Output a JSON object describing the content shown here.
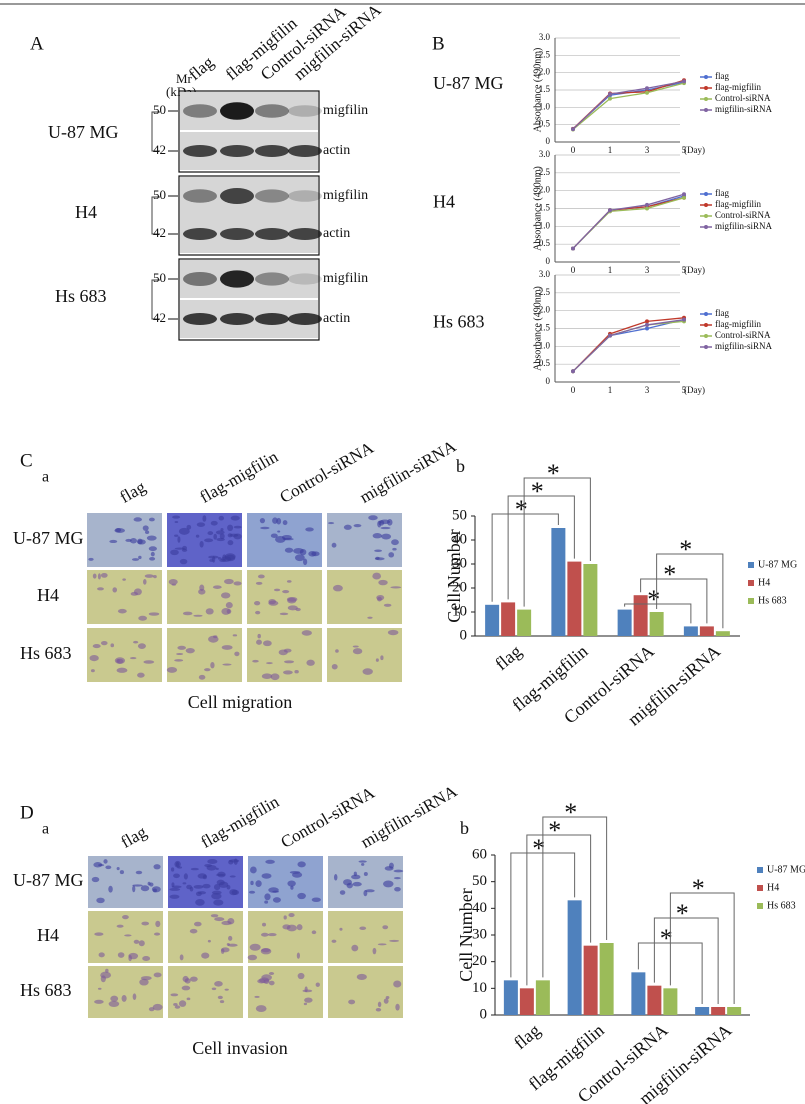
{
  "panel_labels": [
    "A",
    "B",
    "C",
    "D"
  ],
  "subpanel_labels": [
    "a",
    "b",
    "a",
    "b"
  ],
  "blot": {
    "lanes": [
      "flag",
      "flag-migfilin",
      "Control-siRNA",
      "migfilin-siRNA"
    ],
    "mr_label": [
      "Mr",
      "(kDa)"
    ],
    "cell_lines": [
      "U-87 MG",
      "H4",
      "Hs 683"
    ],
    "markers": [
      "50",
      "42"
    ],
    "proteins": [
      "migfilin",
      "actin"
    ]
  },
  "micrographs": {
    "conditions": [
      "flag",
      "flag-migfilin",
      "Control-siRNA",
      "migfilin-siRNA"
    ],
    "cell_lines": [
      "U-87 MG",
      "H4",
      "Hs 683"
    ],
    "captions": [
      "Cell migration",
      "Cell invasion"
    ]
  },
  "chart_data": [
    {
      "type": "line",
      "label": "U-87 MG",
      "y_label": "Absorbance (490nm)",
      "x_unit": "(Day)",
      "categories": [
        "0",
        "1",
        "3",
        "5"
      ],
      "ylim": [
        0,
        3
      ],
      "yticks": [
        0,
        0.5,
        {
          "value": 1,
          "label": "1.0"
        },
        1.5,
        {
          "value": 2,
          "label": "2.0"
        },
        2.5,
        {
          "value": 3,
          "label": "3.0"
        }
      ],
      "grid": true,
      "series": [
        {
          "name": "flag",
          "color": "#4f6fd0",
          "values": [
            0.38,
            1.35,
            1.5,
            1.72
          ]
        },
        {
          "name": "flag-migfilin",
          "color": "#c0392b",
          "values": [
            0.38,
            1.4,
            1.45,
            1.78
          ]
        },
        {
          "name": "Control-siRNA",
          "color": "#9bbb59",
          "values": [
            0.36,
            1.25,
            1.42,
            1.7
          ]
        },
        {
          "name": "migfilin-siRNA",
          "color": "#8064a2",
          "values": [
            0.37,
            1.38,
            1.55,
            1.75
          ]
        }
      ]
    },
    {
      "type": "line",
      "label": "H4",
      "y_label": "Absorbance (490nm)",
      "x_unit": "(Day)",
      "categories": [
        "0",
        "1",
        "3",
        "5"
      ],
      "ylim": [
        0,
        3
      ],
      "yticks": [
        0,
        0.5,
        {
          "value": 1,
          "label": "1.0"
        },
        1.5,
        {
          "value": 2,
          "label": "2.0"
        },
        2.5,
        {
          "value": 3,
          "label": "3.0"
        }
      ],
      "grid": true,
      "series": [
        {
          "name": "flag",
          "color": "#4f6fd0",
          "values": [
            0.38,
            1.45,
            1.55,
            1.85
          ]
        },
        {
          "name": "flag-migfilin",
          "color": "#c0392b",
          "values": [
            0.38,
            1.45,
            1.55,
            1.8
          ]
        },
        {
          "name": "Control-siRNA",
          "color": "#9bbb59",
          "values": [
            0.38,
            1.42,
            1.5,
            1.8
          ]
        },
        {
          "name": "migfilin-siRNA",
          "color": "#8064a2",
          "values": [
            0.38,
            1.45,
            1.6,
            1.9
          ]
        }
      ]
    },
    {
      "type": "line",
      "label": "Hs 683",
      "y_label": "Absorbance (490nm)",
      "x_unit": "(Day)",
      "categories": [
        "0",
        "1",
        "3",
        "5"
      ],
      "ylim": [
        0,
        3
      ],
      "yticks": [
        0,
        0.5,
        {
          "value": 1,
          "label": "1.0"
        },
        1.5,
        {
          "value": 2,
          "label": "2.0"
        },
        2.5,
        {
          "value": 3,
          "label": "3.0"
        }
      ],
      "grid": true,
      "series": [
        {
          "name": "flag",
          "color": "#4f6fd0",
          "values": [
            0.3,
            1.3,
            1.5,
            1.75
          ]
        },
        {
          "name": "flag-migfilin",
          "color": "#c0392b",
          "values": [
            0.3,
            1.35,
            1.7,
            1.8
          ]
        },
        {
          "name": "Control-siRNA",
          "color": "#9bbb59",
          "values": [
            0.3,
            1.3,
            1.6,
            1.7
          ]
        },
        {
          "name": "migfilin-siRNA",
          "color": "#8064a2",
          "values": [
            0.3,
            1.3,
            1.6,
            1.75
          ]
        }
      ]
    },
    {
      "type": "bar",
      "y_label": "Cell Number",
      "categories": [
        "flag",
        "flag-migfilin",
        "Control-siRNA",
        "migfilin-siRNA"
      ],
      "ylim": [
        0,
        50
      ],
      "yticks": [
        0,
        10,
        20,
        30,
        40,
        50
      ],
      "annotations": [
        "*",
        "*",
        "*",
        "*",
        "*",
        "*"
      ],
      "series": [
        {
          "name": "U-87 MG",
          "color": "#4f81bd",
          "values": [
            13,
            45,
            11,
            4
          ]
        },
        {
          "name": "H4",
          "color": "#c0504d",
          "values": [
            14,
            31,
            17,
            4
          ]
        },
        {
          "name": "Hs 683",
          "color": "#9bbb59",
          "values": [
            11,
            30,
            10,
            2
          ]
        }
      ]
    },
    {
      "type": "bar",
      "y_label": "Cell Number",
      "categories": [
        "flag",
        "flag-migfilin",
        "Control-siRNA",
        "migfilin-siRNA"
      ],
      "ylim": [
        0,
        60
      ],
      "yticks": [
        0,
        10,
        20,
        30,
        40,
        50,
        60
      ],
      "annotations": [
        "*",
        "*",
        "*",
        "*",
        "*",
        "*"
      ],
      "series": [
        {
          "name": "U-87 MG",
          "color": "#4f81bd",
          "values": [
            13,
            43,
            16,
            3
          ]
        },
        {
          "name": "H4",
          "color": "#c0504d",
          "values": [
            10,
            26,
            11,
            3
          ]
        },
        {
          "name": "Hs 683",
          "color": "#9bbb59",
          "values": [
            13,
            27,
            10,
            3
          ]
        }
      ]
    }
  ]
}
